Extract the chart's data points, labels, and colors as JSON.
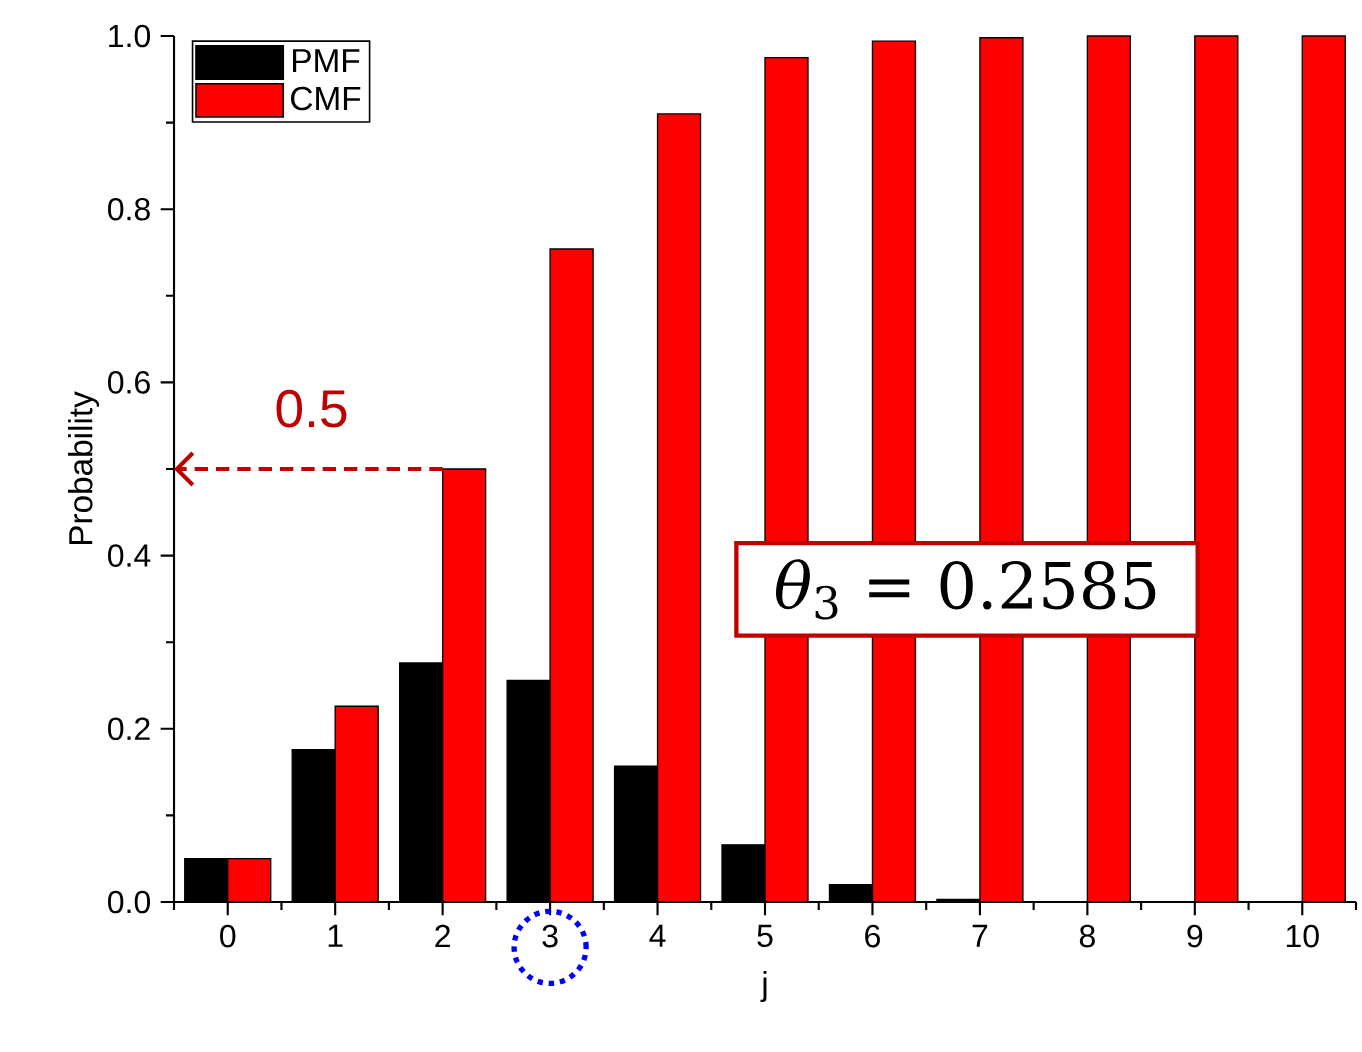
{
  "chart_data": {
    "type": "bar",
    "xlabel": "j",
    "ylabel": "Probability",
    "categories": [
      "0",
      "1",
      "2",
      "3",
      "4",
      "5",
      "6",
      "7",
      "8",
      "9",
      "10"
    ],
    "series": [
      {
        "name": "PMF",
        "color": "#000000",
        "values": [
          0.05,
          0.176,
          0.276,
          0.256,
          0.157,
          0.066,
          0.02,
          0.003,
          0,
          0,
          0
        ]
      },
      {
        "name": "CMF",
        "color": "#ff0000",
        "values": [
          0.05,
          0.226,
          0.5,
          0.754,
          0.91,
          0.975,
          0.994,
          0.998,
          1.0,
          1.0,
          1.0
        ]
      }
    ],
    "ylim": [
      0,
      1.0
    ],
    "yticks": [
      {
        "value": 0,
        "label": "0.0"
      },
      0.2,
      0.4,
      0.6,
      0.8,
      {
        "value": 1,
        "label": "1.0"
      }
    ],
    "legend": "top left",
    "grid": false,
    "annotations": [
      {
        "text": "0.5",
        "x": "2",
        "y": 0.5
      },
      "*θ*$_{3}$ = 0.2585"
    ]
  }
}
